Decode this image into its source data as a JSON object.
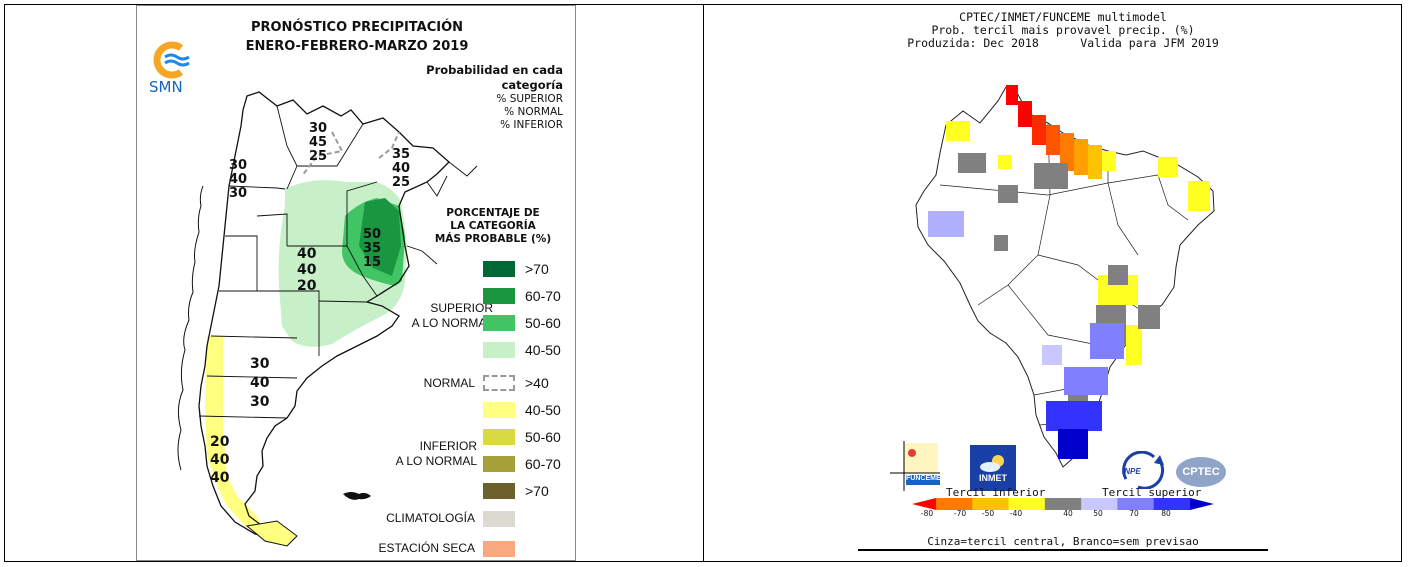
{
  "left_panel": {
    "title_line1": "PRONÓSTICO PRECIPITACIÓN",
    "title_line2": "ENERO-FEBRERO-MARZO 2019",
    "logo_text": "SMN",
    "prob_title_line1": "Probabilidad en cada",
    "prob_title_line2": "categoría",
    "prob_lines": [
      "% SUPERIOR",
      "% NORMAL",
      "% INFERIOR"
    ],
    "porcentaje_title": [
      "PORCENTAJE DE",
      "LA CATEGORÍA",
      "MÁS PROBABLE (%)"
    ],
    "category_superior": [
      "SUPERIOR",
      "A LO NORMAL"
    ],
    "category_normal": "NORMAL",
    "category_inferior": [
      "INFERIOR",
      "A LO NORMAL"
    ],
    "category_clim": "CLIMATOLOGÍA",
    "category_seca": "ESTACIÓN SECA",
    "legend": [
      {
        "label": ">70",
        "color": "#006837"
      },
      {
        "label": "60-70",
        "color": "#1a9641"
      },
      {
        "label": "50-60",
        "color": "#41c464"
      },
      {
        "label": "40-50",
        "color": "#c7f0c9"
      },
      {
        "label": ">40",
        "color": "dashed"
      },
      {
        "label": "40-50",
        "color": "#ffff80"
      },
      {
        "label": "50-60",
        "color": "#d9d940"
      },
      {
        "label": "60-70",
        "color": "#a6a03a"
      },
      {
        "label": ">70",
        "color": "#6b5f2a"
      },
      {
        "label": "",
        "color": "#dddad2"
      },
      {
        "label": "",
        "color": "#f9a880"
      }
    ],
    "region_values": [
      {
        "values": [
          "30",
          "45",
          "25"
        ]
      },
      {
        "values": [
          "35",
          "40",
          "25"
        ]
      },
      {
        "values": [
          "30",
          "40",
          "30"
        ]
      },
      {
        "values": [
          "40",
          "40",
          "20"
        ]
      },
      {
        "values": [
          "50",
          "35",
          "15"
        ]
      },
      {
        "values": [
          "30",
          "40",
          "30"
        ]
      },
      {
        "values": [
          "20",
          "40",
          "40"
        ]
      }
    ]
  },
  "right_panel": {
    "title_line1": "CPTEC/INMET/FUNCEME multimodel",
    "title_line2": "Prob. tercil mais provavel precip. (%)",
    "title_line3": "Produzida: Dec 2018      Valida para JFM 2019",
    "colorbar_label_inferior": "Tercil inferior",
    "colorbar_label_superior": "Tercil superior",
    "ticks": [
      "-80",
      "-70",
      "-50",
      "-40",
      "40",
      "50",
      "70",
      "80"
    ],
    "footer": "Cinza=tercil central, Branco=sem previsao",
    "logos": [
      "FUNCEME",
      "INMET",
      "INPE",
      "CPTEC"
    ],
    "colorbar_colors": [
      "#ff0000",
      "#ff7a00",
      "#ffc200",
      "#ffff22",
      "#808080",
      "#c8c8ff",
      "#8080ff",
      "#3333ff",
      "#0000cc"
    ]
  }
}
